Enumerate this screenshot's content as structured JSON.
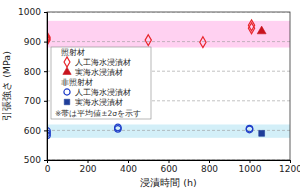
{
  "chart_data": {
    "type": "scatter",
    "x_label": "浸漬時間 (h)",
    "y_label": "引張強さ (MPa)",
    "xlim": [
      0,
      1200
    ],
    "xticks": [
      0,
      200,
      400,
      600,
      800,
      1000,
      1200
    ],
    "ylim": [
      500,
      1000
    ],
    "yticks": [
      500,
      600,
      700,
      800,
      900,
      1000
    ],
    "grid": true,
    "legend": "left",
    "annotation": "※帯は平均値±2σを示す",
    "groups": [
      {
        "name": "照射材",
        "color": "#ffc6ee",
        "band": [
          880,
          970
        ]
      },
      {
        "name": "非照射材",
        "color": "#c8ebf6",
        "band": [
          575,
          620
        ]
      }
    ],
    "series": [
      {
        "name": "人工海水浸漬材",
        "group": 0,
        "color": "#e8262c",
        "marker": "diamond-open",
        "x": [
          0,
          0,
          0,
          500,
          770,
          1010,
          1010
        ],
        "values": [
          905,
          910,
          915,
          905,
          898,
          945,
          955
        ]
      },
      {
        "name": "実海水浸漬材",
        "group": 0,
        "color": "#c8141e",
        "marker": "triangle",
        "x": [
          1060
        ],
        "values": [
          935
        ]
      },
      {
        "name": "人工海水浸漬材",
        "group": 1,
        "color": "#1e3cc8",
        "marker": "circle-open",
        "x": [
          0,
          0,
          0,
          350,
          350,
          1000,
          1000
        ],
        "values": [
          583,
          590,
          598,
          605,
          610,
          603,
          606
        ]
      },
      {
        "name": "実海水浸漬材",
        "group": 1,
        "color": "#1f3d99",
        "marker": "square",
        "x": [
          1060
        ],
        "values": [
          590
        ]
      }
    ]
  }
}
